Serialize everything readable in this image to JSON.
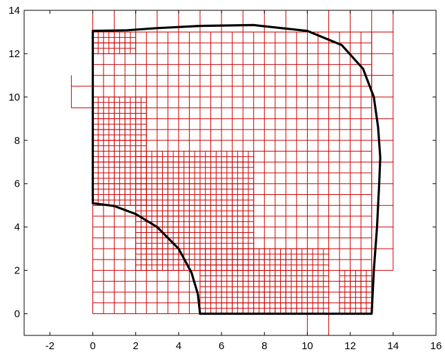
{
  "chart_data": {
    "type": "line",
    "xlim": [
      -3.2,
      16
    ],
    "ylim": [
      -1,
      14
    ],
    "x_ticks": [
      -2,
      0,
      2,
      4,
      6,
      8,
      10,
      12,
      14,
      16
    ],
    "y_ticks": [
      0,
      2,
      4,
      6,
      8,
      10,
      12,
      14
    ],
    "grid": false,
    "legend": "none",
    "boundary_outline": [
      [
        5,
        0
      ],
      [
        13,
        0
      ],
      [
        13.1,
        2
      ],
      [
        13.25,
        4
      ],
      [
        13.35,
        6
      ],
      [
        13.4,
        7.2
      ],
      [
        13.3,
        8.6
      ],
      [
        13.1,
        10
      ],
      [
        12.6,
        11.3
      ],
      [
        11.6,
        12.4
      ],
      [
        10,
        13.05
      ],
      [
        7.5,
        13.32
      ],
      [
        5,
        13.28
      ],
      [
        3,
        13.18
      ],
      [
        1.6,
        13.08
      ],
      [
        0,
        13.05
      ],
      [
        0,
        5.1
      ],
      [
        1,
        4.97
      ],
      [
        2,
        4.6
      ],
      [
        3,
        4
      ],
      [
        4,
        3
      ],
      [
        4.6,
        1.9
      ],
      [
        4.9,
        0.9
      ],
      [
        5,
        0
      ]
    ],
    "mesh_regions": [
      {
        "x0": -1,
        "x1": 0,
        "y0": 9.5,
        "y1": 11,
        "cell": 1
      },
      {
        "x0": 0,
        "x1": 14,
        "y0": 13,
        "y1": 14,
        "cell": 1
      },
      {
        "x0": 13,
        "x1": 14,
        "y0": 2,
        "y1": 13,
        "cell": 1
      },
      {
        "x0": 10,
        "x1": 11,
        "y0": -1,
        "y1": 0,
        "cell": 1
      },
      {
        "x0": 0,
        "x1": 13,
        "y0": 0,
        "y1": 13,
        "cell": 0.5
      },
      {
        "x0": 0,
        "x1": 2,
        "y0": 12,
        "y1": 13,
        "cell": 0.25
      },
      {
        "x0": 0,
        "x1": 2.5,
        "y0": 5,
        "y1": 10,
        "cell": 0.25
      },
      {
        "x0": 2,
        "x1": 7.5,
        "y0": 2,
        "y1": 7.5,
        "cell": 0.25
      },
      {
        "x0": 5,
        "x1": 11,
        "y0": 0,
        "y1": 3,
        "cell": 0.25
      },
      {
        "x0": 11.5,
        "x1": 13,
        "y0": 0,
        "y1": 2,
        "cell": 0.25
      }
    ],
    "colors": {
      "mesh": "#cc0000",
      "boundary": "#000000",
      "axes": "#000000"
    }
  }
}
